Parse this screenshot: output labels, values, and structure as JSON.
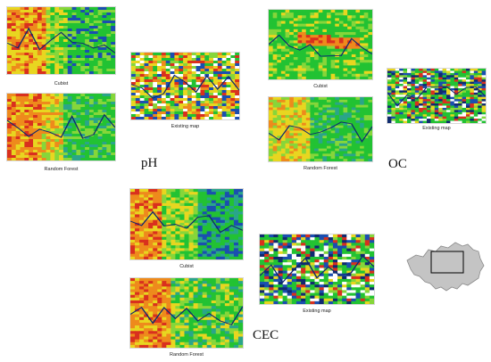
{
  "sections": {
    "ph": {
      "label": "pH",
      "cubist_caption": "Cubist",
      "rf_caption": "Random Forest",
      "existing_caption": "Existing map"
    },
    "oc": {
      "label": "OC",
      "cubist_caption": "Cubist",
      "rf_caption": "Random Forest",
      "existing_caption": "Existing map"
    },
    "cec": {
      "label": "CEC",
      "cubist_caption": "Cubist",
      "rf_caption": "Random Forest",
      "existing_caption": "Existing map"
    }
  },
  "colors": {
    "green": "#22c233",
    "lightgreen": "#86d63a",
    "yellow": "#e8d620",
    "orange": "#ee8a1c",
    "red": "#d9301e",
    "blue": "#1a4fb0",
    "darkblue": "#0f2a70",
    "teal": "#2aa58a",
    "white": "#ffffff",
    "inset_fill": "#c4c4c4",
    "inset_stroke": "#8a8a8a",
    "inset_box": "#000000"
  }
}
